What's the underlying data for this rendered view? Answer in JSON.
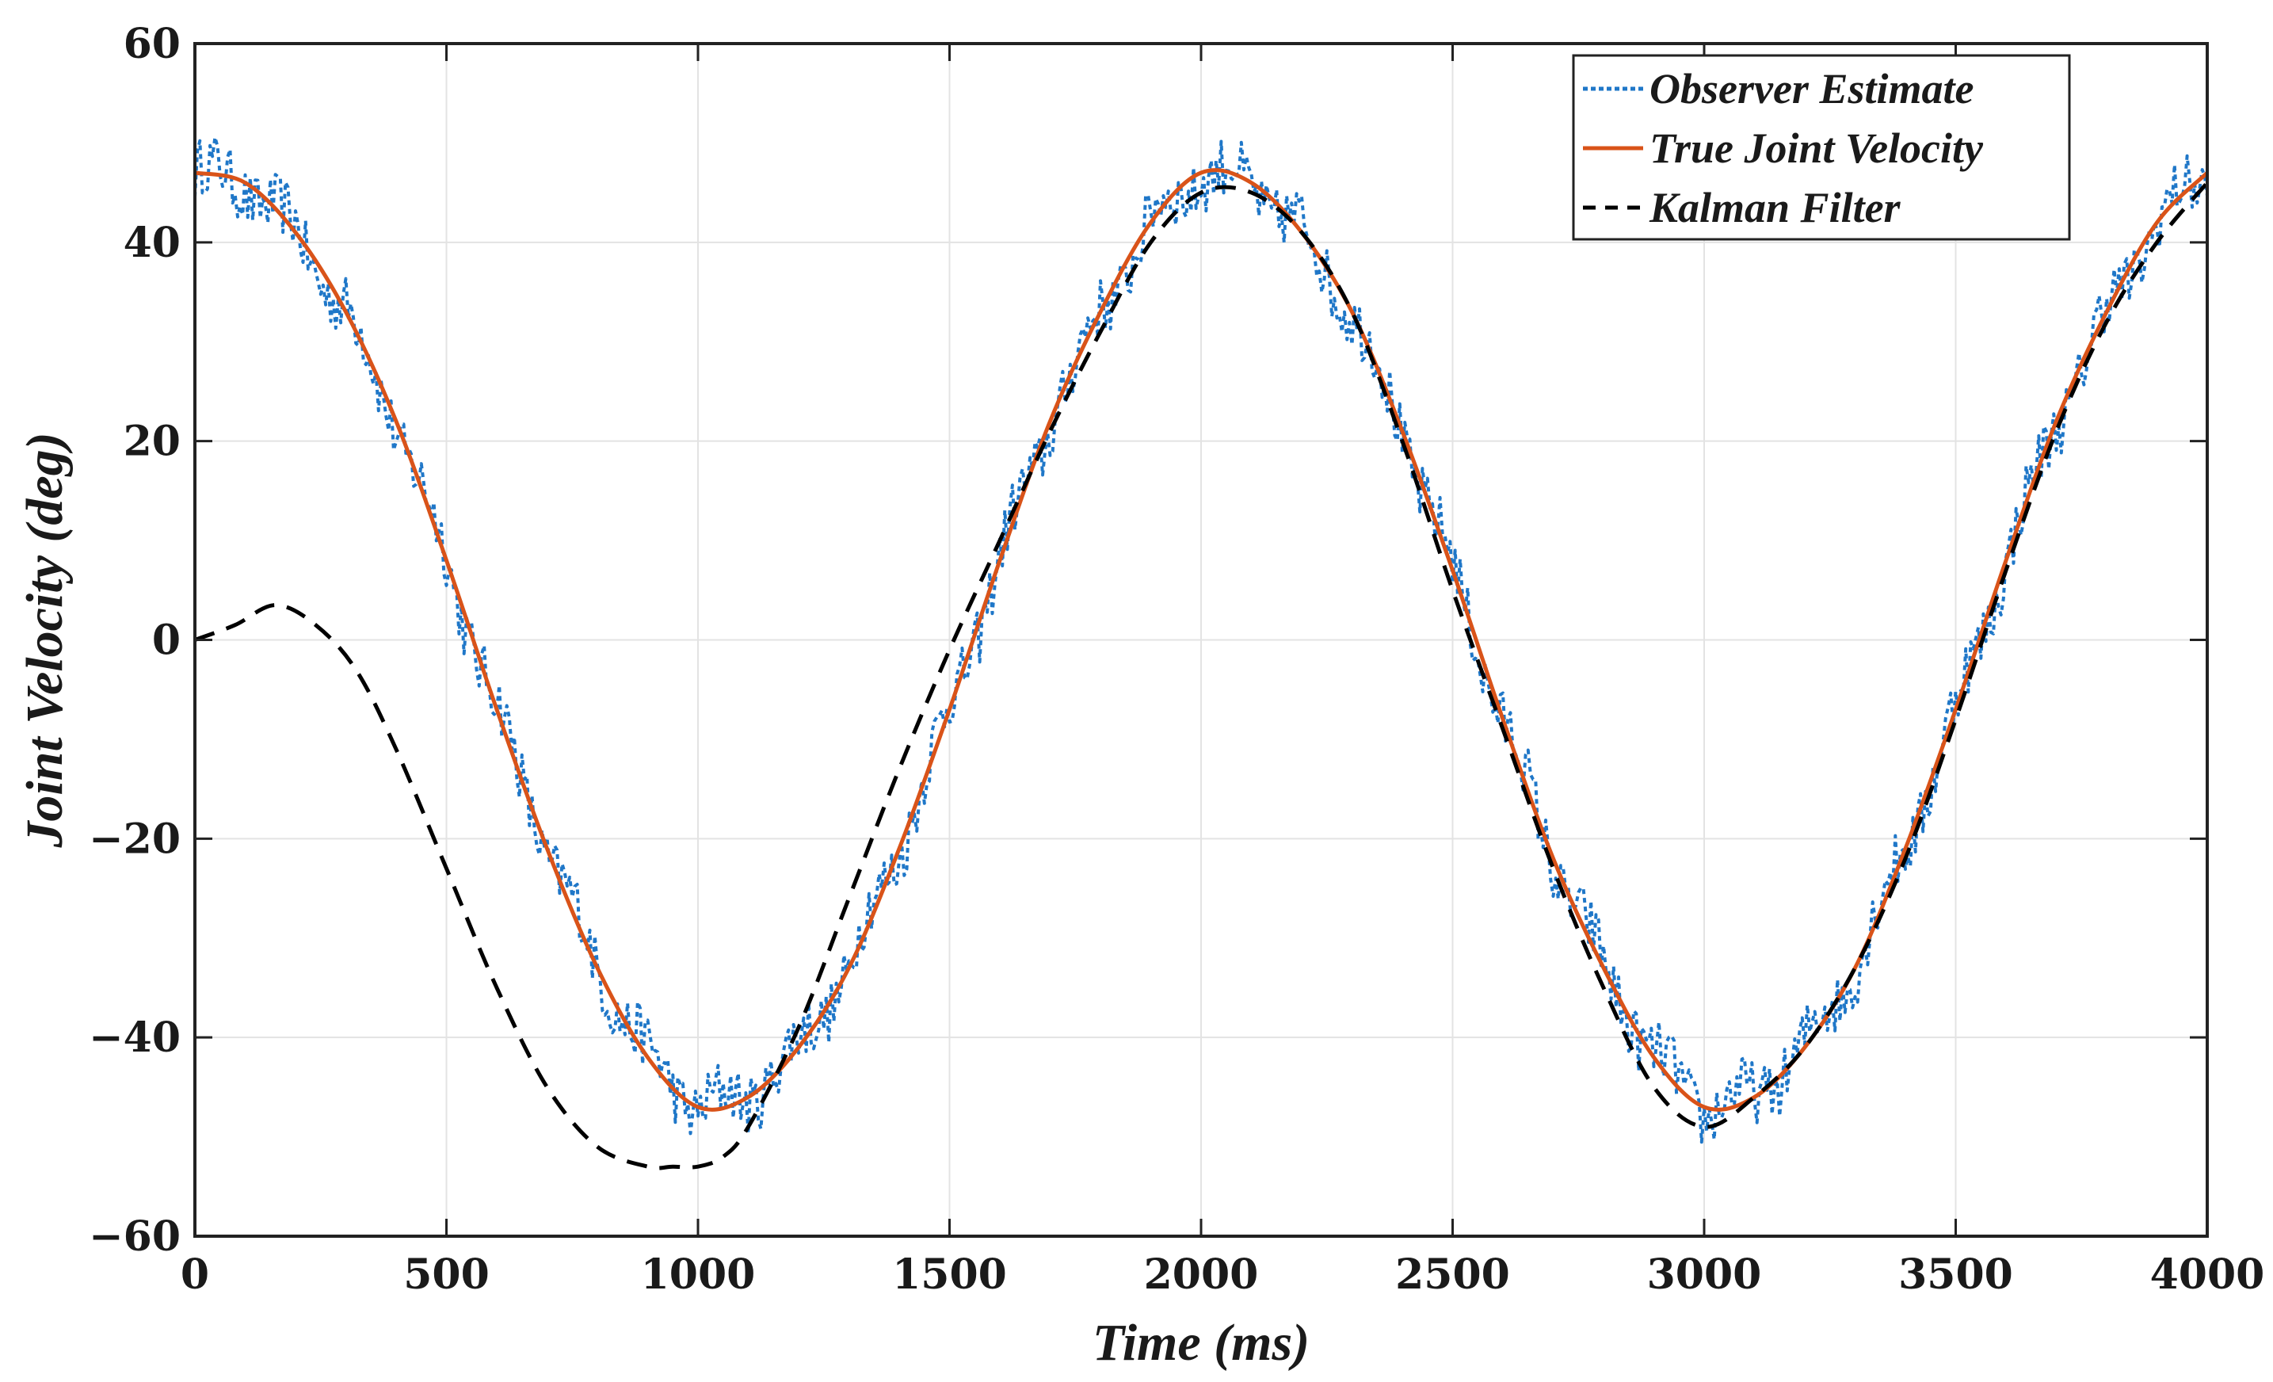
{
  "chart_data": {
    "type": "line",
    "title": "",
    "xlabel": "Time (ms)",
    "ylabel": "Joint Velocity (deg)",
    "xlim": [
      0,
      4000
    ],
    "ylim": [
      -60,
      60
    ],
    "xticks": [
      0,
      500,
      1000,
      1500,
      2000,
      2500,
      3000,
      3500,
      4000
    ],
    "yticks": [
      -60,
      -40,
      -20,
      0,
      20,
      40,
      60
    ],
    "ytick_labels": [
      "−60",
      "−40",
      "−20",
      "0",
      "20",
      "40",
      "60"
    ],
    "grid": true,
    "legend_position": "top-right",
    "series": [
      {
        "name": "Observer Estimate",
        "style": "dotted",
        "color": "#1f77c8",
        "noise_amplitude_deg": 3,
        "x": [
          0,
          100,
          200,
          300,
          400,
          500,
          600,
          700,
          800,
          900,
          1000,
          1100,
          1200,
          1300,
          1400,
          1500,
          1600,
          1700,
          1800,
          1900,
          2000,
          2100,
          2200,
          2300,
          2400,
          2500,
          2600,
          2700,
          2800,
          2900,
          3000,
          3100,
          3200,
          3300,
          3400,
          3500,
          3600,
          3700,
          3800,
          3900,
          4000
        ],
        "values": [
          47,
          46,
          41,
          33,
          22,
          8,
          -7,
          -21,
          -33,
          -42,
          -47,
          -46,
          -41,
          -33,
          -21,
          -7,
          8,
          22,
          33,
          42,
          47,
          46,
          41,
          33,
          21,
          7,
          -8,
          -22,
          -33,
          -42,
          -47,
          -46,
          -41,
          -33,
          -21,
          -7,
          8,
          22,
          33,
          42,
          47
        ]
      },
      {
        "name": "True Joint Velocity",
        "style": "solid",
        "color": "#d95319",
        "x": [
          0,
          100,
          200,
          300,
          400,
          500,
          600,
          700,
          800,
          900,
          1000,
          1100,
          1200,
          1300,
          1400,
          1500,
          1600,
          1700,
          1800,
          1900,
          2000,
          2100,
          2200,
          2300,
          2400,
          2500,
          2600,
          2700,
          2800,
          2900,
          3000,
          3100,
          3200,
          3300,
          3400,
          3500,
          3600,
          3700,
          3800,
          3900,
          4000
        ],
        "values": [
          47,
          46,
          41,
          33,
          22,
          8,
          -7,
          -21,
          -33,
          -42,
          -47,
          -46,
          -41,
          -33,
          -21,
          -7,
          8,
          22,
          33,
          42,
          47,
          46,
          41,
          33,
          21,
          7,
          -8,
          -22,
          -33,
          -42,
          -47,
          -46,
          -41,
          -33,
          -21,
          -7,
          8,
          22,
          33,
          42,
          47
        ]
      },
      {
        "name": "Kalman Filter",
        "style": "dashed",
        "color": "#000000",
        "x": [
          0,
          80,
          160,
          240,
          320,
          400,
          500,
          600,
          700,
          800,
          900,
          950,
          1000,
          1050,
          1100,
          1200,
          1300,
          1400,
          1500,
          1600,
          1700,
          1800,
          1900,
          2000,
          2100,
          2200,
          2300,
          2400,
          2500,
          2600,
          2700,
          2800,
          2900,
          3000,
          3100,
          3200,
          3300,
          3400,
          3500,
          3600,
          3700,
          3800,
          3900,
          4000
        ],
        "values": [
          0,
          1.5,
          3.5,
          1.5,
          -3,
          -11,
          -23,
          -35,
          -45,
          -51,
          -53,
          -53,
          -53,
          -52,
          -49,
          -39,
          -26,
          -13,
          -1,
          10,
          21,
          31,
          40,
          45,
          45,
          41,
          33,
          20,
          5,
          -9,
          -23,
          -35,
          -45,
          -49,
          -46,
          -41,
          -33,
          -22,
          -8,
          7,
          21,
          32,
          40,
          46
        ]
      }
    ]
  }
}
